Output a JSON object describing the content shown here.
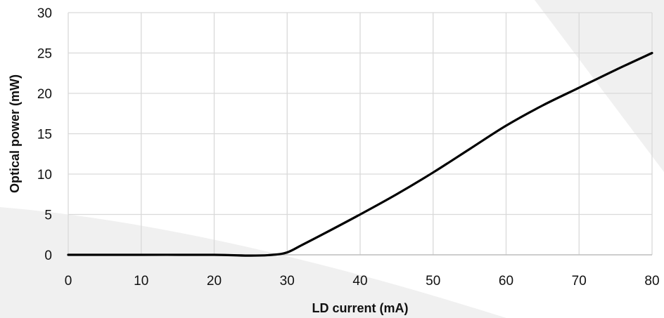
{
  "chart_data": {
    "type": "line",
    "title": "",
    "xlabel": "LD current (mA)",
    "ylabel": "Optical power (mW)",
    "xlim": [
      0,
      80
    ],
    "ylim": [
      0,
      30
    ],
    "xticks": [
      0,
      10,
      20,
      30,
      40,
      50,
      60,
      70,
      80
    ],
    "yticks": [
      0,
      5,
      10,
      15,
      20,
      25,
      30
    ],
    "grid": true,
    "legend": "none",
    "series": [
      {
        "color": "#000000",
        "x": [
          0,
          10,
          20,
          25,
          28,
          30,
          32,
          35,
          40,
          45,
          50,
          55,
          60,
          65,
          70,
          75,
          80
        ],
        "y": [
          0,
          0,
          0,
          -0.1,
          0,
          0.3,
          1.2,
          2.6,
          5.0,
          7.5,
          10.2,
          13.1,
          16.0,
          18.5,
          20.7,
          22.9,
          25.0
        ]
      }
    ],
    "colors": {
      "line": "#000000",
      "grid": "#d9d9d9",
      "axis": "#bfbfbf",
      "background_band": "#f0f0f0"
    }
  }
}
